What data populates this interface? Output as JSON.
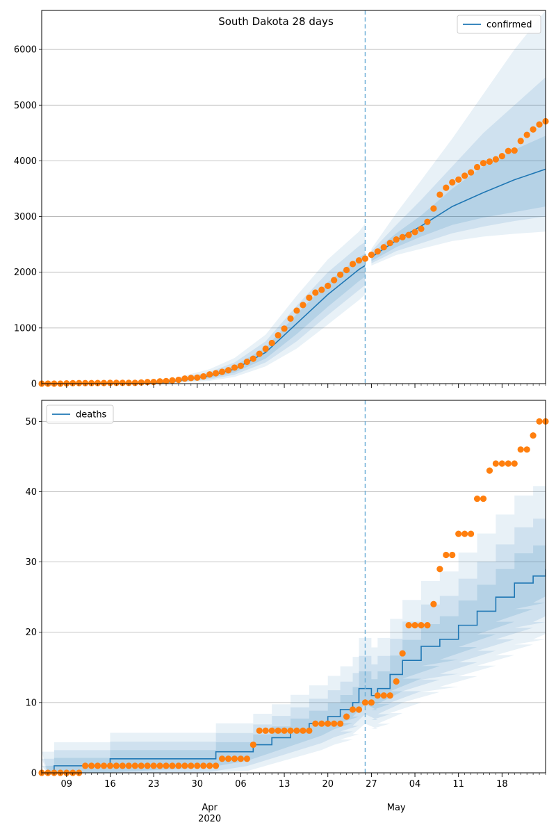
{
  "chart_data": [
    {
      "type": "line",
      "title": "South Dakota 28 days",
      "legend": {
        "label": "confirmed",
        "placement": "top-right"
      },
      "ylim": [
        0,
        6700
      ],
      "yticks": [
        0,
        1000,
        2000,
        3000,
        4000,
        5000,
        6000
      ],
      "x_start": "2020-03-05",
      "x_end": "2020-05-25",
      "forecast_start": "2020-04-26",
      "grid": "horizontal",
      "observed": {
        "x": [
          "2020-03-05",
          "2020-03-06",
          "2020-03-07",
          "2020-03-08",
          "2020-03-09",
          "2020-03-10",
          "2020-03-11",
          "2020-03-12",
          "2020-03-13",
          "2020-03-14",
          "2020-03-15",
          "2020-03-16",
          "2020-03-17",
          "2020-03-18",
          "2020-03-19",
          "2020-03-20",
          "2020-03-21",
          "2020-03-22",
          "2020-03-23",
          "2020-03-24",
          "2020-03-25",
          "2020-03-26",
          "2020-03-27",
          "2020-03-28",
          "2020-03-29",
          "2020-03-30",
          "2020-03-31",
          "2020-04-01",
          "2020-04-02",
          "2020-04-03",
          "2020-04-04",
          "2020-04-05",
          "2020-04-06",
          "2020-04-07",
          "2020-04-08",
          "2020-04-09",
          "2020-04-10",
          "2020-04-11",
          "2020-04-12",
          "2020-04-13",
          "2020-04-14",
          "2020-04-15",
          "2020-04-16",
          "2020-04-17",
          "2020-04-18",
          "2020-04-19",
          "2020-04-20",
          "2020-04-21",
          "2020-04-22",
          "2020-04-23",
          "2020-04-24",
          "2020-04-25",
          "2020-04-26",
          "2020-04-27",
          "2020-04-28",
          "2020-04-29",
          "2020-04-30",
          "2020-05-01",
          "2020-05-02",
          "2020-05-03",
          "2020-05-04",
          "2020-05-05",
          "2020-05-06",
          "2020-05-07",
          "2020-05-08",
          "2020-05-09",
          "2020-05-10",
          "2020-05-11",
          "2020-05-12",
          "2020-05-13",
          "2020-05-14",
          "2020-05-15",
          "2020-05-16",
          "2020-05-17",
          "2020-05-18",
          "2020-05-19",
          "2020-05-20",
          "2020-05-21",
          "2020-05-22",
          "2020-05-23",
          "2020-05-24",
          "2020-05-25"
        ],
        "y": [
          0,
          0,
          0,
          0,
          5,
          8,
          9,
          9,
          10,
          11,
          11,
          14,
          14,
          14,
          14,
          14,
          21,
          28,
          30,
          41,
          46,
          58,
          68,
          90,
          101,
          108,
          129,
          165,
          187,
          212,
          240,
          288,
          320,
          393,
          447,
          536,
          626,
          730,
          868,
          988,
          1168,
          1311,
          1411,
          1542,
          1635,
          1685,
          1755,
          1858,
          1956,
          2040,
          2147,
          2212,
          2245,
          2313,
          2373,
          2449,
          2525,
          2588,
          2630,
          2668,
          2721,
          2779,
          2905,
          3144,
          3393,
          3517,
          3614,
          3663,
          3732,
          3792,
          3887,
          3959,
          3987,
          4027,
          4085,
          4177,
          4185,
          4356,
          4466,
          4563,
          4653,
          4710
        ]
      },
      "model": {
        "x": [
          "2020-03-05",
          "2020-03-15",
          "2020-03-25",
          "2020-04-01",
          "2020-04-05",
          "2020-04-10",
          "2020-04-15",
          "2020-04-20",
          "2020-04-25",
          "2020-04-26",
          "2020-04-27",
          "2020-05-01",
          "2020-05-05",
          "2020-05-10",
          "2020-05-15",
          "2020-05-20",
          "2020-05-25"
        ],
        "median": [
          0,
          5,
          20,
          140,
          260,
          560,
          1080,
          1600,
          2050,
          2120,
          2270,
          2570,
          2830,
          3180,
          3430,
          3660,
          3850
        ],
        "band_inner": {
          "lower": [
            0,
            3,
            12,
            100,
            200,
            450,
            890,
            1380,
            1840,
            1920,
            2200,
            2450,
            2640,
            2850,
            2980,
            3080,
            3180
          ],
          "upper": [
            0,
            8,
            30,
            180,
            320,
            650,
            1250,
            1820,
            2270,
            2330,
            2330,
            2700,
            3020,
            3500,
            3900,
            4200,
            4450
          ]
        },
        "band_middle": {
          "lower": [
            0,
            1,
            6,
            75,
            160,
            380,
            760,
            1230,
            1680,
            1770,
            2160,
            2380,
            2520,
            2700,
            2820,
            2920,
            3000
          ],
          "upper": [
            0,
            12,
            42,
            210,
            380,
            760,
            1400,
            2000,
            2470,
            2540,
            2380,
            2850,
            3300,
            3900,
            4500,
            5000,
            5500
          ]
        },
        "band_outer": {
          "lower": [
            0,
            0,
            2,
            50,
            120,
            310,
            630,
            1060,
            1500,
            1600,
            2120,
            2310,
            2420,
            2560,
            2640,
            2690,
            2730
          ],
          "upper": [
            0,
            18,
            60,
            260,
            460,
            880,
            1580,
            2230,
            2730,
            2870,
            2420,
            3060,
            3650,
            4400,
            5200,
            6000,
            6700
          ]
        }
      }
    },
    {
      "type": "line",
      "title": "",
      "legend": {
        "label": "deaths",
        "placement": "top-left"
      },
      "ylim": [
        0,
        53
      ],
      "yticks": [
        0,
        10,
        20,
        30,
        40,
        50
      ],
      "xticks_minor": [
        "09",
        "16",
        "23",
        "30",
        "06",
        "13",
        "20",
        "27",
        "04",
        "11",
        "18"
      ],
      "xticks_major": [
        "Apr\n2020",
        "May"
      ],
      "grid": "horizontal",
      "observed": {
        "x": [
          "2020-03-05",
          "2020-03-06",
          "2020-03-07",
          "2020-03-08",
          "2020-03-09",
          "2020-03-10",
          "2020-03-11",
          "2020-03-12",
          "2020-03-13",
          "2020-03-14",
          "2020-03-15",
          "2020-03-16",
          "2020-03-17",
          "2020-03-18",
          "2020-03-19",
          "2020-03-20",
          "2020-03-21",
          "2020-03-22",
          "2020-03-23",
          "2020-03-24",
          "2020-03-25",
          "2020-03-26",
          "2020-03-27",
          "2020-03-28",
          "2020-03-29",
          "2020-03-30",
          "2020-03-31",
          "2020-04-01",
          "2020-04-02",
          "2020-04-03",
          "2020-04-04",
          "2020-04-05",
          "2020-04-06",
          "2020-04-07",
          "2020-04-08",
          "2020-04-09",
          "2020-04-10",
          "2020-04-11",
          "2020-04-12",
          "2020-04-13",
          "2020-04-14",
          "2020-04-15",
          "2020-04-16",
          "2020-04-17",
          "2020-04-18",
          "2020-04-19",
          "2020-04-20",
          "2020-04-21",
          "2020-04-22",
          "2020-04-23",
          "2020-04-24",
          "2020-04-25",
          "2020-04-26",
          "2020-04-27",
          "2020-04-28",
          "2020-04-29",
          "2020-04-30",
          "2020-05-01",
          "2020-05-02",
          "2020-05-03",
          "2020-05-04",
          "2020-05-05",
          "2020-05-06",
          "2020-05-07",
          "2020-05-08",
          "2020-05-09",
          "2020-05-10",
          "2020-05-11",
          "2020-05-12",
          "2020-05-13",
          "2020-05-14",
          "2020-05-15",
          "2020-05-16",
          "2020-05-17",
          "2020-05-18",
          "2020-05-19",
          "2020-05-20",
          "2020-05-21",
          "2020-05-22",
          "2020-05-23",
          "2020-05-24",
          "2020-05-25"
        ],
        "y": [
          0,
          0,
          0,
          0,
          0,
          0,
          0,
          1,
          1,
          1,
          1,
          1,
          1,
          1,
          1,
          1,
          1,
          1,
          1,
          1,
          1,
          1,
          1,
          1,
          1,
          1,
          1,
          1,
          1,
          2,
          2,
          2,
          2,
          2,
          4,
          6,
          6,
          6,
          6,
          6,
          6,
          6,
          6,
          6,
          7,
          7,
          7,
          7,
          7,
          8,
          9,
          9,
          10,
          10,
          11,
          11,
          11,
          13,
          17,
          21,
          21,
          21,
          21,
          24,
          29,
          31,
          31,
          34,
          34,
          34,
          39,
          39,
          43,
          44,
          44,
          44,
          44,
          46,
          46,
          48,
          50,
          50
        ]
      },
      "model": {
        "x": [
          "2020-03-05",
          "2020-03-06",
          "2020-03-07",
          "2020-03-15",
          "2020-03-16",
          "2020-04-01",
          "2020-04-02",
          "2020-04-07",
          "2020-04-08",
          "2020-04-10",
          "2020-04-11",
          "2020-04-13",
          "2020-04-14",
          "2020-04-16",
          "2020-04-17",
          "2020-04-19",
          "2020-04-20",
          "2020-04-21",
          "2020-04-22",
          "2020-04-24",
          "2020-04-25",
          "2020-04-26",
          "2020-04-27",
          "2020-04-28",
          "2020-04-30",
          "2020-05-02",
          "2020-05-05",
          "2020-05-08",
          "2020-05-11",
          "2020-05-14",
          "2020-05-17",
          "2020-05-20",
          "2020-05-23",
          "2020-05-25"
        ],
        "median": [
          0,
          0,
          1,
          1,
          2,
          2,
          3,
          3,
          4,
          4,
          5,
          5,
          6,
          6,
          7,
          7,
          8,
          8,
          9,
          10,
          12,
          12,
          11,
          12,
          14,
          16,
          18,
          19,
          21,
          23,
          25,
          27,
          28,
          29
        ]
      }
    }
  ]
}
